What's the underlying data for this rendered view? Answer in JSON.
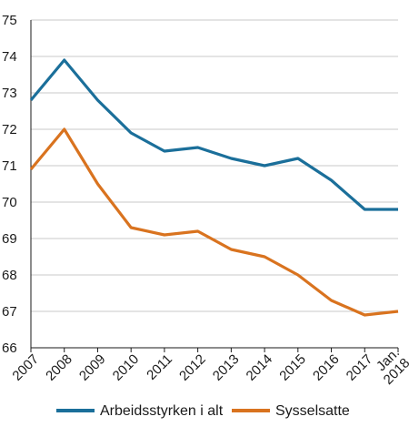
{
  "chart_data": {
    "type": "line",
    "title": "",
    "xlabel": "",
    "ylabel": "",
    "ylim": [
      66,
      75
    ],
    "yticks": [
      66,
      67,
      68,
      69,
      70,
      71,
      72,
      73,
      74,
      75
    ],
    "grid": true,
    "legend_position": "bottom",
    "categories": [
      [
        "2007"
      ],
      [
        "2008"
      ],
      [
        "2009"
      ],
      [
        "2010"
      ],
      [
        "2011"
      ],
      [
        "2012"
      ],
      [
        "2013"
      ],
      [
        "2014"
      ],
      [
        "2015"
      ],
      [
        "2016"
      ],
      [
        "2017"
      ],
      [
        "Jan.",
        "2018"
      ]
    ],
    "series": [
      {
        "name": "Arbeidsstyrken i alt",
        "color": "#1b6f9a",
        "values": [
          72.8,
          73.9,
          72.8,
          71.9,
          71.4,
          71.5,
          71.2,
          71.0,
          71.2,
          70.6,
          69.8,
          69.8
        ]
      },
      {
        "name": "Sysselsatte",
        "color": "#d9731f",
        "values": [
          70.9,
          72.0,
          70.5,
          69.3,
          69.1,
          69.2,
          68.7,
          68.5,
          68.0,
          67.3,
          66.9,
          67.0
        ]
      }
    ]
  }
}
